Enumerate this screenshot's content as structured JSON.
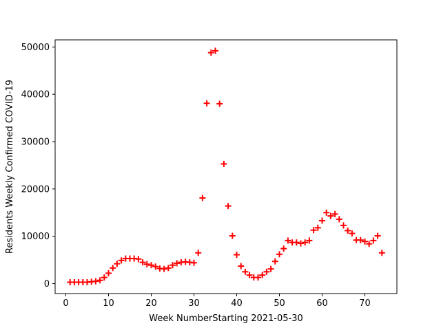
{
  "chart_data": {
    "type": "scatter",
    "marker": "+",
    "color": "#ff0000",
    "xlabel": "Week NumberStarting 2021-05-30",
    "ylabel": "Residents Weekly Confirmed COVID-19",
    "xlim": [
      -2.5,
      77.5
    ],
    "ylim": [
      -2100,
      51500
    ],
    "xticks": [
      0,
      10,
      20,
      30,
      40,
      50,
      60,
      70
    ],
    "yticks": [
      0,
      10000,
      20000,
      30000,
      40000,
      50000
    ],
    "grid": false,
    "x": [
      1,
      2,
      3,
      4,
      5,
      6,
      7,
      8,
      9,
      10,
      11,
      12,
      13,
      14,
      15,
      16,
      17,
      18,
      19,
      20,
      21,
      22,
      23,
      24,
      25,
      26,
      27,
      28,
      29,
      30,
      31,
      32,
      33,
      34,
      35,
      36,
      37,
      38,
      39,
      40,
      41,
      42,
      43,
      44,
      45,
      46,
      47,
      48,
      49,
      50,
      51,
      52,
      53,
      54,
      55,
      56,
      57,
      58,
      59,
      60,
      61,
      62,
      63,
      64,
      65,
      66,
      67,
      68,
      69,
      70,
      71,
      72,
      73,
      74
    ],
    "y": [
      300,
      300,
      300,
      300,
      300,
      400,
      500,
      700,
      1300,
      2200,
      3300,
      4200,
      4900,
      5300,
      5300,
      5300,
      5200,
      4500,
      4100,
      3900,
      3600,
      3200,
      3100,
      3300,
      3900,
      4300,
      4500,
      4600,
      4500,
      4400,
      6500,
      18100,
      38100,
      48800,
      49200,
      38000,
      25300,
      16400,
      10100,
      6100,
      3700,
      2500,
      1800,
      1300,
      1300,
      1800,
      2500,
      3100,
      4700,
      6200,
      7400,
      9100,
      8700,
      8700,
      8500,
      8700,
      9100,
      11300,
      11800,
      13300,
      15000,
      14300,
      14700,
      13600,
      12300,
      11200,
      10600,
      9200,
      9200,
      8900,
      8400,
      9100,
      10100,
      6500
    ]
  }
}
